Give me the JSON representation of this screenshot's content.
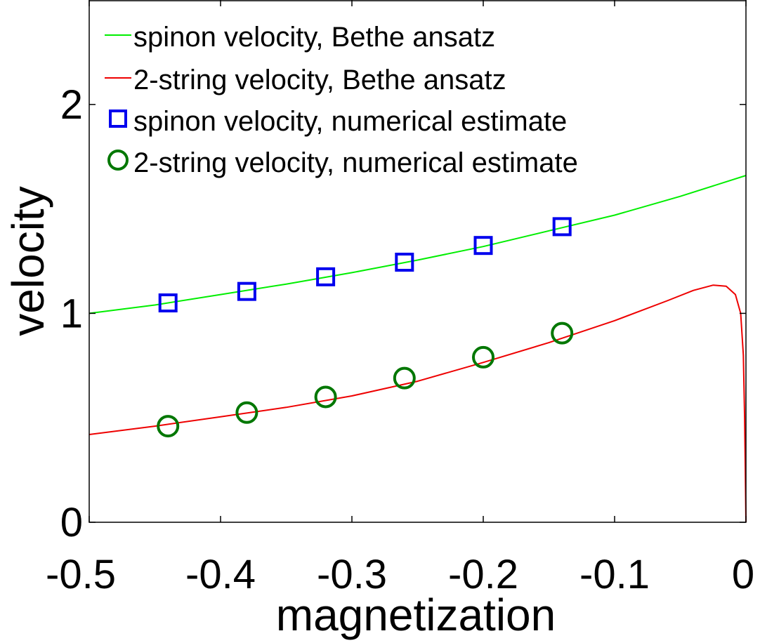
{
  "chart_data": {
    "type": "line",
    "title": "",
    "xlabel": "magnetization",
    "ylabel": "velocity",
    "xlim": [
      -0.5,
      0
    ],
    "ylim": [
      0,
      2.5
    ],
    "xticks": [
      -0.5,
      -0.4,
      -0.3,
      -0.2,
      -0.1,
      0
    ],
    "xtick_labels": [
      "-0.5",
      "-0.4",
      "-0.3",
      "-0.2",
      "-0.1",
      "0"
    ],
    "yticks": [
      0,
      1,
      2
    ],
    "ytick_labels": [
      "0",
      "1",
      "2"
    ],
    "grid": false,
    "legend_position": "top-left",
    "series": [
      {
        "name": "spinon velocity, Bethe ansatz",
        "kind": "line",
        "color": "#00ee00",
        "x": [
          -0.5,
          -0.45,
          -0.4,
          -0.35,
          -0.3,
          -0.25,
          -0.2,
          -0.15,
          -0.1,
          -0.05,
          0
        ],
        "y": [
          1.0,
          1.04,
          1.09,
          1.14,
          1.195,
          1.255,
          1.32,
          1.395,
          1.47,
          1.56,
          1.66
        ]
      },
      {
        "name": "2-string velocity, Bethe ansatz",
        "kind": "line",
        "color": "#ee0000",
        "x": [
          -0.5,
          -0.45,
          -0.4,
          -0.35,
          -0.3,
          -0.25,
          -0.2,
          -0.15,
          -0.1,
          -0.06,
          -0.04,
          -0.025,
          -0.015,
          -0.008,
          -0.004,
          -0.002,
          -0.001,
          0
        ],
        "y": [
          0.42,
          0.46,
          0.505,
          0.55,
          0.605,
          0.675,
          0.765,
          0.86,
          0.965,
          1.06,
          1.11,
          1.135,
          1.13,
          1.09,
          1.0,
          0.8,
          0.5,
          0.0
        ]
      },
      {
        "name": "spinon velocity, numerical estimate",
        "kind": "marker",
        "marker": "square",
        "color": "#0000ee",
        "x": [
          -0.44,
          -0.38,
          -0.32,
          -0.26,
          -0.2,
          -0.14
        ],
        "y": [
          1.05,
          1.105,
          1.175,
          1.245,
          1.325,
          1.415
        ]
      },
      {
        "name": "2-string velocity, numerical estimate",
        "kind": "marker",
        "marker": "circle",
        "color": "#007700",
        "x": [
          -0.44,
          -0.38,
          -0.32,
          -0.26,
          -0.2,
          -0.14
        ],
        "y": [
          0.46,
          0.525,
          0.6,
          0.69,
          0.79,
          0.905
        ]
      }
    ]
  }
}
